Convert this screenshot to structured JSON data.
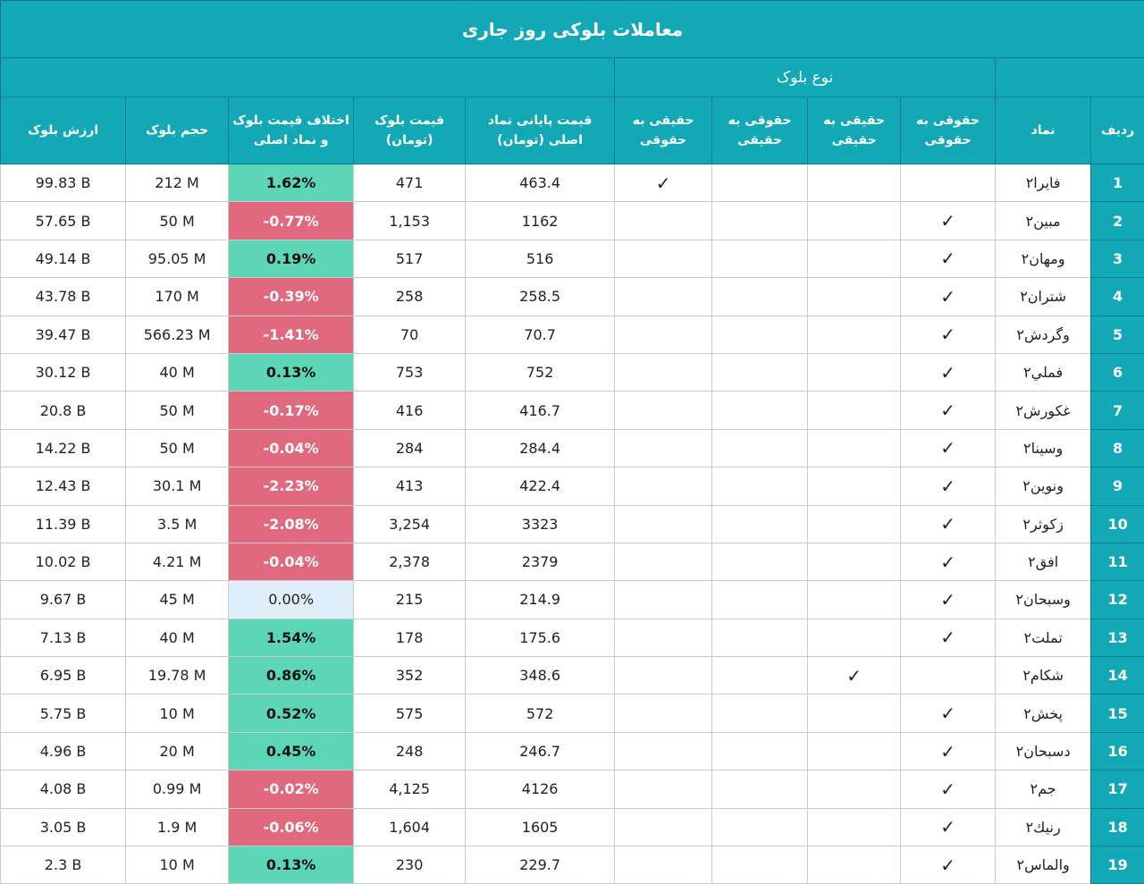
{
  "title": "معاملات بلوکی روز جاری",
  "block_type_header": "نوع بلوک",
  "columns": [
    {
      "key": "rank",
      "label": "ردیف"
    },
    {
      "key": "symbol",
      "label": "نماد"
    },
    {
      "key": "legal_to_legal",
      "label": "حقوقی به حقوقی"
    },
    {
      "key": "real_to_real",
      "label": "حقیقی به حقیقی"
    },
    {
      "key": "legal_to_real",
      "label": "حقوقی به حقیقی"
    },
    {
      "key": "real_to_legal",
      "label": "حقیقی به حقوقی"
    },
    {
      "key": "close_price",
      "label": "قیمت پایانی نماد اصلی (تومان)"
    },
    {
      "key": "block_price",
      "label": "قیمت بلوک (تومان)"
    },
    {
      "key": "diff",
      "label": "اختلاف قیمت بلوک و نماد اصلی"
    },
    {
      "key": "volume",
      "label": "حجم بلوک"
    },
    {
      "key": "value",
      "label": "ارزش بلوک"
    }
  ],
  "rows": [
    {
      "rank": "1",
      "symbol": "فایرا۲",
      "real_to_legal": "✓",
      "close_price": "463.4",
      "block_price": "471",
      "diff": "1.62%",
      "volume": "212 M",
      "value": "99.83 B"
    },
    {
      "rank": "2",
      "symbol": "مبین۲",
      "legal_to_legal": "✓",
      "close_price": "1162",
      "block_price": "1,153",
      "diff": "-0.77%",
      "volume": "50 M",
      "value": "57.65 B"
    },
    {
      "rank": "3",
      "symbol": "ومهان۲",
      "legal_to_legal": "✓",
      "close_price": "516",
      "block_price": "517",
      "diff": "0.19%",
      "volume": "95.05 M",
      "value": "49.14 B"
    },
    {
      "rank": "4",
      "symbol": "شتران۲",
      "legal_to_legal": "✓",
      "close_price": "258.5",
      "block_price": "258",
      "diff": "-0.39%",
      "volume": "170 M",
      "value": "43.78 B"
    },
    {
      "rank": "5",
      "symbol": "وگردش۲",
      "legal_to_legal": "✓",
      "close_price": "70.7",
      "block_price": "70",
      "diff": "-1.41%",
      "volume": "566.23 M",
      "value": "39.47 B"
    },
    {
      "rank": "6",
      "symbol": "فملي۲",
      "legal_to_legal": "✓",
      "close_price": "752",
      "block_price": "753",
      "diff": "0.13%",
      "volume": "40 M",
      "value": "30.12 B"
    },
    {
      "rank": "7",
      "symbol": "غکورش۲",
      "legal_to_legal": "✓",
      "close_price": "416.7",
      "block_price": "416",
      "diff": "-0.17%",
      "volume": "50 M",
      "value": "20.8 B"
    },
    {
      "rank": "8",
      "symbol": "وسینا۲",
      "legal_to_legal": "✓",
      "close_price": "284.4",
      "block_price": "284",
      "diff": "-0.04%",
      "volume": "50 M",
      "value": "14.22 B"
    },
    {
      "rank": "9",
      "symbol": "ونوین۲",
      "legal_to_legal": "✓",
      "close_price": "422.4",
      "block_price": "413",
      "diff": "-2.23%",
      "volume": "30.1 M",
      "value": "12.43 B"
    },
    {
      "rank": "10",
      "symbol": "زکوثر۲",
      "legal_to_legal": "✓",
      "close_price": "3323",
      "block_price": "3,254",
      "diff": "-2.08%",
      "volume": "3.5 M",
      "value": "11.39 B"
    },
    {
      "rank": "11",
      "symbol": "افق۲",
      "legal_to_legal": "✓",
      "close_price": "2379",
      "block_price": "2,378",
      "diff": "-0.04%",
      "volume": "4.21 M",
      "value": "10.02 B"
    },
    {
      "rank": "12",
      "symbol": "وسبحان۲",
      "legal_to_legal": "✓",
      "close_price": "214.9",
      "block_price": "215",
      "diff": "0.00%",
      "volume": "45 M",
      "value": "9.67 B"
    },
    {
      "rank": "13",
      "symbol": "تملت۲",
      "legal_to_legal": "✓",
      "close_price": "175.6",
      "block_price": "178",
      "diff": "1.54%",
      "volume": "40 M",
      "value": "7.13 B"
    },
    {
      "rank": "14",
      "symbol": "شکام۲",
      "real_to_real": "✓",
      "close_price": "348.6",
      "block_price": "352",
      "diff": "0.86%",
      "volume": "19.78 M",
      "value": "6.95 B"
    },
    {
      "rank": "15",
      "symbol": "پخش۲",
      "legal_to_legal": "✓",
      "close_price": "572",
      "block_price": "575",
      "diff": "0.52%",
      "volume": "10 M",
      "value": "5.75 B"
    },
    {
      "rank": "16",
      "symbol": "دسبحان۲",
      "legal_to_legal": "✓",
      "close_price": "246.7",
      "block_price": "248",
      "diff": "0.45%",
      "volume": "20 M",
      "value": "4.96 B"
    },
    {
      "rank": "17",
      "symbol": "جم۲",
      "legal_to_legal": "✓",
      "close_price": "4126",
      "block_price": "4,125",
      "diff": "-0.02%",
      "volume": "0.99 M",
      "value": "4.08 B"
    },
    {
      "rank": "18",
      "symbol": "رنیك۲",
      "legal_to_legal": "✓",
      "close_price": "1605",
      "block_price": "1,604",
      "diff": "-0.06%",
      "volume": "1.9 M",
      "value": "3.05 B"
    },
    {
      "rank": "19",
      "symbol": "والماس۲",
      "legal_to_legal": "✓",
      "close_price": "229.7",
      "block_price": "230",
      "diff": "0.13%",
      "volume": "10 M",
      "value": "2.3 B"
    }
  ]
}
